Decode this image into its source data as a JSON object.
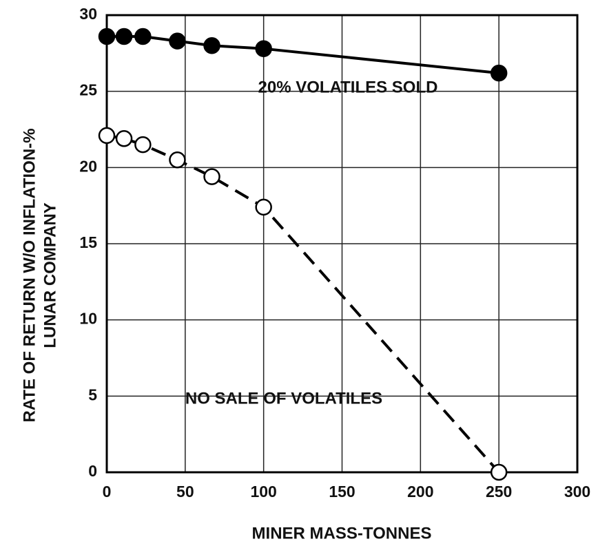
{
  "chart_data": {
    "type": "line",
    "x_label": "MINER MASS-TONNES",
    "y_label": [
      "RATE OF RETURN W/O INFLATION-%",
      "LUNAR COMPANY"
    ],
    "series": [
      {
        "name": "20% VOLATILES SOLD",
        "color": "#000000",
        "marker": "filled",
        "dashed": false,
        "x": [
          0,
          11,
          23,
          45,
          67,
          100,
          250
        ],
        "values": [
          28.6,
          28.6,
          28.6,
          28.3,
          28.0,
          27.8,
          26.2
        ]
      },
      {
        "name": "NO SALE OF VOLATILES",
        "color": "#000000",
        "marker": "hollow",
        "dashed": true,
        "x": [
          0,
          11,
          23,
          45,
          67,
          100,
          250
        ],
        "values": [
          22.1,
          21.9,
          21.5,
          20.5,
          19.4,
          17.4,
          0
        ]
      }
    ],
    "xlim": [
      0,
      300
    ],
    "xticks": [
      0,
      50,
      100,
      150,
      200,
      250,
      300
    ],
    "ylim": [
      0,
      30
    ],
    "yticks": [
      0,
      5,
      10,
      15,
      20,
      25,
      30
    ],
    "grid": true
  }
}
